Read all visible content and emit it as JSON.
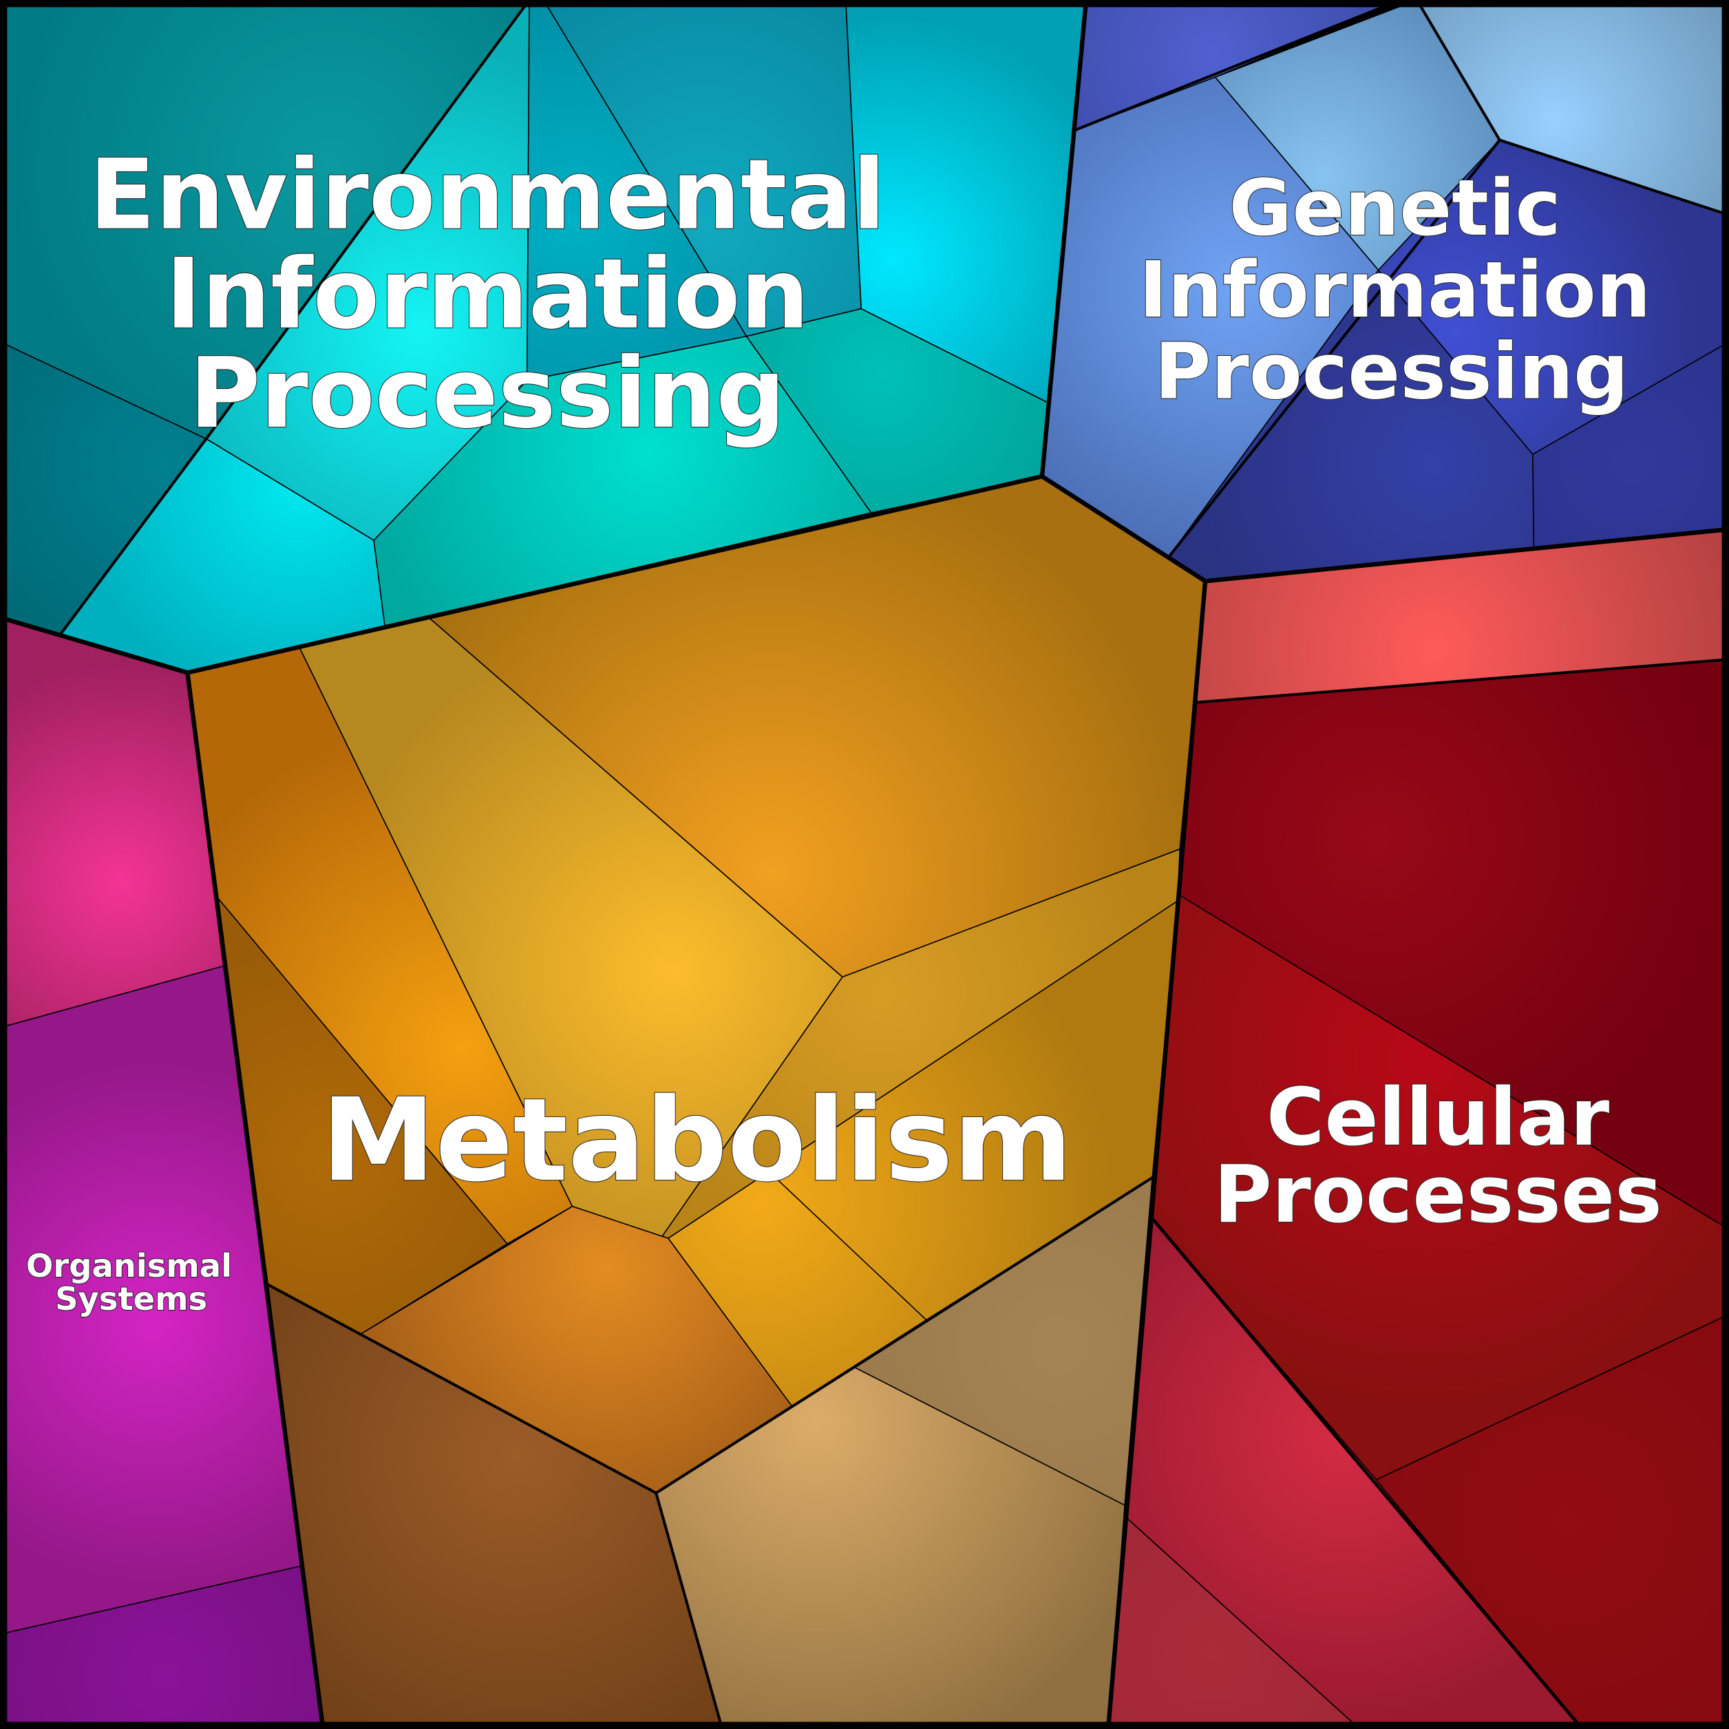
{
  "labels": {
    "environmental": [
      "Environmental",
      "Information",
      "Processing"
    ],
    "genetic": [
      "Genetic",
      "Information",
      "Processing"
    ],
    "metabolism": [
      "Metabolism"
    ],
    "cellular": [
      "Cellular",
      "Processes"
    ],
    "organismal": [
      "Organismal",
      "Systems"
    ]
  },
  "colors": {
    "environmental": "#00c8d0",
    "genetic": "#4a60c8",
    "metabolism": "#e8a020",
    "cellular": "#a01018",
    "organismal": "#c020a0"
  }
}
